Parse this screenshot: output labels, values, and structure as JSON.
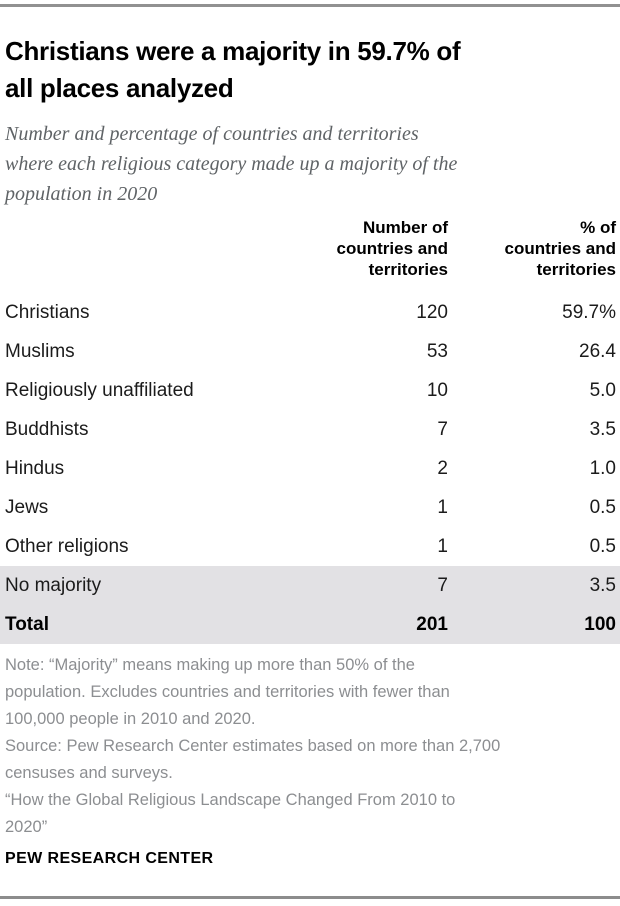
{
  "chart_data": {
    "type": "table",
    "title": "Christians were a majority in 59.7% of all places analyzed",
    "subtitle": "Number and percentage of countries and territories where each religious category made up a majority of the population in 2020",
    "columns": [
      "",
      "Number of countries and territories",
      "% of countries and territories"
    ],
    "rows": [
      {
        "category": "Christians",
        "count": "120",
        "pct": "59.7%"
      },
      {
        "category": "Muslims",
        "count": "53",
        "pct": "26.4"
      },
      {
        "category": "Religiously unaffiliated",
        "count": "10",
        "pct": "5.0"
      },
      {
        "category": "Buddhists",
        "count": "7",
        "pct": "3.5"
      },
      {
        "category": "Hindus",
        "count": "2",
        "pct": "1.0"
      },
      {
        "category": "Jews",
        "count": "1",
        "pct": "0.5"
      },
      {
        "category": "Other religions",
        "count": "1",
        "pct": "0.5"
      },
      {
        "category": "No majority",
        "count": "7",
        "pct": "3.5"
      },
      {
        "category": "Total",
        "count": "201",
        "pct": "100"
      }
    ],
    "highlighted_rows": [
      "No majority",
      "Total"
    ],
    "layout": {
      "numeric_columns_alignment": "right",
      "gridlines": "off"
    }
  },
  "header": {
    "title_lines": [
      "Christians were a majority in 59.7% of",
      "all places analyzed"
    ],
    "subtitle_lines": [
      "Number and percentage of countries and territories",
      "where each religious category made up a majority of the",
      "population in 2020"
    ]
  },
  "table_header": {
    "col1_lines": [
      "Number of",
      "countries and",
      "territories"
    ],
    "col2_lines": [
      "% of",
      "countries and",
      "territories"
    ]
  },
  "footnotes": {
    "note_lines": [
      "Note: “Majority” means making up more than 50% of the",
      "population. Excludes countries and territories with fewer than",
      "100,000 people in 2010 and 2020."
    ],
    "source_lines": [
      "Source: Pew Research Center estimates based on more than 2,700",
      "censuses and surveys.",
      "“How the Global Religious Landscape Changed From 2010 to",
      "2020”"
    ]
  },
  "footer": {
    "brand": "PEW RESEARCH CENTER"
  },
  "colors": {
    "shaded_row": "#e2e1e4",
    "top_rule": "#919191",
    "bottom_rule": "#8c8c8c",
    "note_text": "#8c8e91",
    "subtitle_text": "#5f6366",
    "title_text": "#000000"
  }
}
